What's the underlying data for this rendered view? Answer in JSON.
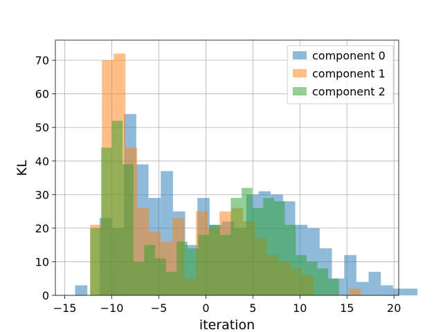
{
  "chart_data": {
    "type": "histogram",
    "xlabel": "iteration",
    "ylabel": "KL",
    "xlim": [
      -16,
      20.5
    ],
    "ylim": [
      0,
      76
    ],
    "xticks": [
      -15,
      -10,
      -5,
      0,
      5,
      10,
      15,
      20
    ],
    "yticks": [
      0,
      10,
      20,
      30,
      40,
      50,
      60,
      70
    ],
    "grid": true,
    "legend_position": "top-right",
    "series": [
      {
        "name": "component 0",
        "color": "#1f77b4",
        "opacity": 0.5,
        "bin_start": -13.9,
        "bin_width": 1.3,
        "counts": [
          3,
          0,
          23,
          20,
          54,
          39,
          29,
          37,
          25,
          15,
          29,
          21,
          22,
          20,
          30,
          31,
          30,
          28,
          21,
          20,
          14,
          5,
          12,
          4,
          7,
          3,
          2,
          2
        ]
      },
      {
        "name": "component 1",
        "color": "#ff7f0e",
        "opacity": 0.5,
        "bin_start": -12.3,
        "bin_width": 1.25,
        "counts": [
          21,
          70,
          72,
          44,
          26,
          19,
          16,
          23,
          5,
          25,
          20,
          25,
          26,
          22,
          17,
          12,
          10,
          8,
          6,
          0,
          0,
          0,
          2
        ]
      },
      {
        "name": "component 2",
        "color": "#2ca02c",
        "opacity": 0.5,
        "bin_start": -12.3,
        "bin_width": 1.15,
        "counts": [
          20,
          44,
          52,
          39,
          10,
          15,
          11,
          7,
          16,
          14,
          18,
          21,
          18,
          29,
          32,
          26,
          29,
          28,
          21,
          12,
          10,
          8,
          5
        ]
      }
    ]
  }
}
